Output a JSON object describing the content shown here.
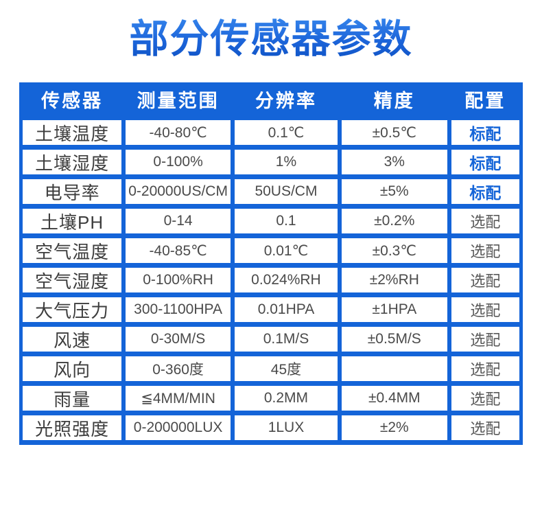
{
  "page_title": "部分传感器参数",
  "colors": {
    "table_blue": "#1464d8",
    "title_blue_top": "#3585ec",
    "title_blue_bottom": "#0e52c4",
    "standard_config_blue": "#1565d8",
    "optional_config_gray": "#585858"
  },
  "table": {
    "headers": [
      "传感器",
      "测量范围",
      "分辨率",
      "精度",
      "配置"
    ],
    "rows": [
      {
        "sensor": "土壤温度",
        "range": "-40-80℃",
        "resolution": "0.1℃",
        "accuracy": "±0.5℃",
        "config": "标配",
        "highlight": true
      },
      {
        "sensor": "土壤湿度",
        "range": "0-100%",
        "resolution": "1%",
        "accuracy": "3%",
        "config": "标配",
        "highlight": true
      },
      {
        "sensor": "电导率",
        "range": "0-20000US/CM",
        "resolution": "50US/CM",
        "accuracy": "±5%",
        "config": "标配",
        "highlight": true
      },
      {
        "sensor": "土壤PH",
        "range": "0-14",
        "resolution": "0.1",
        "accuracy": "±0.2%",
        "config": "选配",
        "highlight": false
      },
      {
        "sensor": "空气温度",
        "range": "-40-85℃",
        "resolution": "0.01℃",
        "accuracy": "±0.3℃",
        "config": "选配",
        "highlight": false
      },
      {
        "sensor": "空气湿度",
        "range": "0-100%RH",
        "resolution": "0.024%RH",
        "accuracy": "±2%RH",
        "config": "选配",
        "highlight": false
      },
      {
        "sensor": "大气压力",
        "range": "300-1100HPA",
        "resolution": "0.01HPA",
        "accuracy": "±1HPA",
        "config": "选配",
        "highlight": false
      },
      {
        "sensor": "风速",
        "range": "0-30M/S",
        "resolution": "0.1M/S",
        "accuracy": "±0.5M/S",
        "config": "选配",
        "highlight": false
      },
      {
        "sensor": "风向",
        "range": "0-360度",
        "resolution": "45度",
        "accuracy": "",
        "config": "选配",
        "highlight": false
      },
      {
        "sensor": "雨量",
        "range": "≦4MM/MIN",
        "resolution": "0.2MM",
        "accuracy": "±0.4MM",
        "config": "选配",
        "highlight": false
      },
      {
        "sensor": "光照强度",
        "range": "0-200000LUX",
        "resolution": "1LUX",
        "accuracy": "±2%",
        "config": "选配",
        "highlight": false
      }
    ]
  }
}
